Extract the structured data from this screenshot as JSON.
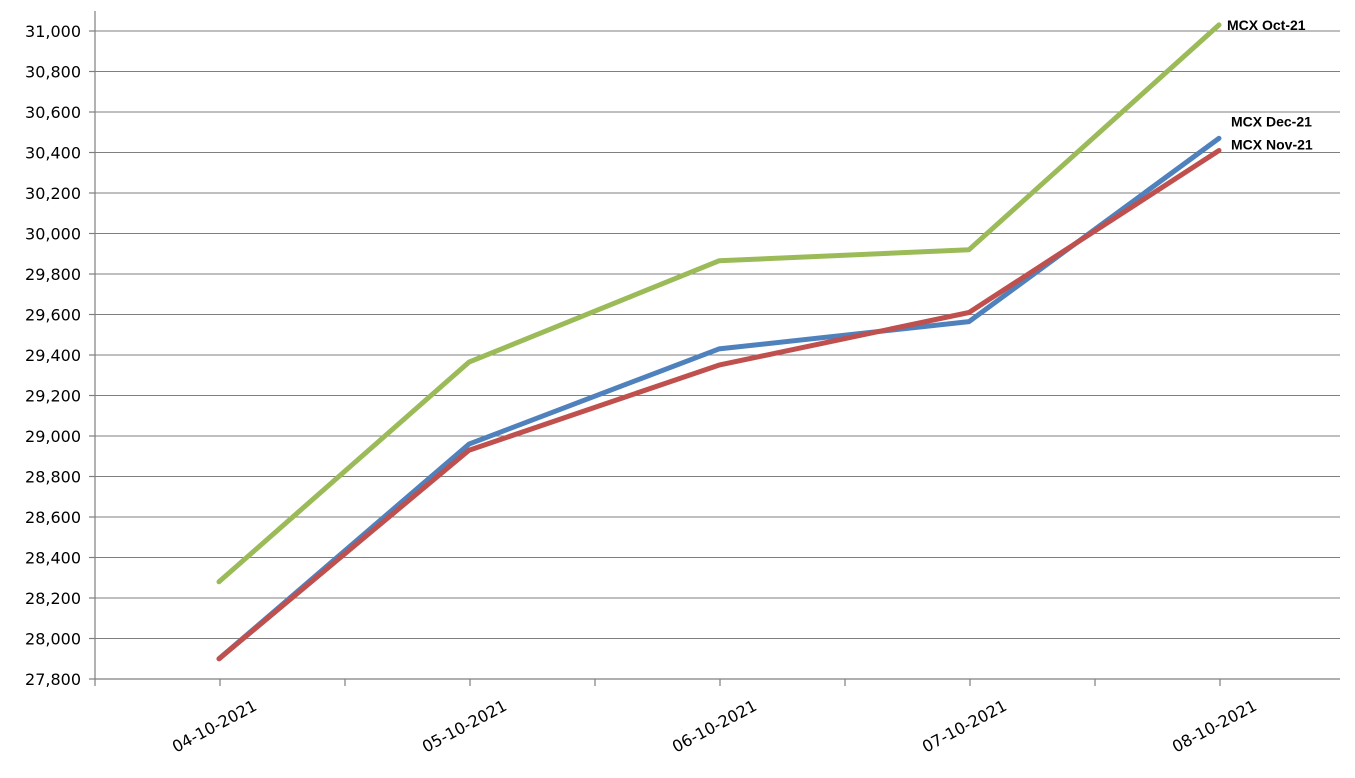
{
  "chart_data": {
    "type": "line",
    "title": "",
    "xlabel": "",
    "ylabel": "",
    "categories": [
      "04-10-2021",
      "05-10-2021",
      "06-10-2021",
      "07-10-2021",
      "08-10-2021"
    ],
    "ylim": [
      27800,
      31000
    ],
    "ytick_step": 200,
    "y_ticks": [
      "27,800",
      "28,000",
      "28,200",
      "28,400",
      "28,600",
      "28,800",
      "29,000",
      "29,200",
      "29,400",
      "29,600",
      "29,800",
      "30,000",
      "30,200",
      "30,400",
      "30,600",
      "30,800",
      "31,000"
    ],
    "grid": true,
    "legend": "none (series labeled at line ends)",
    "series": [
      {
        "name": "MCX Oct-21",
        "color": "#9bbb59",
        "values": [
          28280,
          29365,
          29865,
          29920,
          31030
        ]
      },
      {
        "name": "MCX Dec-21",
        "color": "#4f81bd",
        "values": [
          27900,
          28960,
          29430,
          29565,
          30470
        ]
      },
      {
        "name": "MCX Nov-21",
        "color": "#c0504d",
        "values": [
          27900,
          28930,
          29350,
          29610,
          30410
        ]
      }
    ]
  }
}
